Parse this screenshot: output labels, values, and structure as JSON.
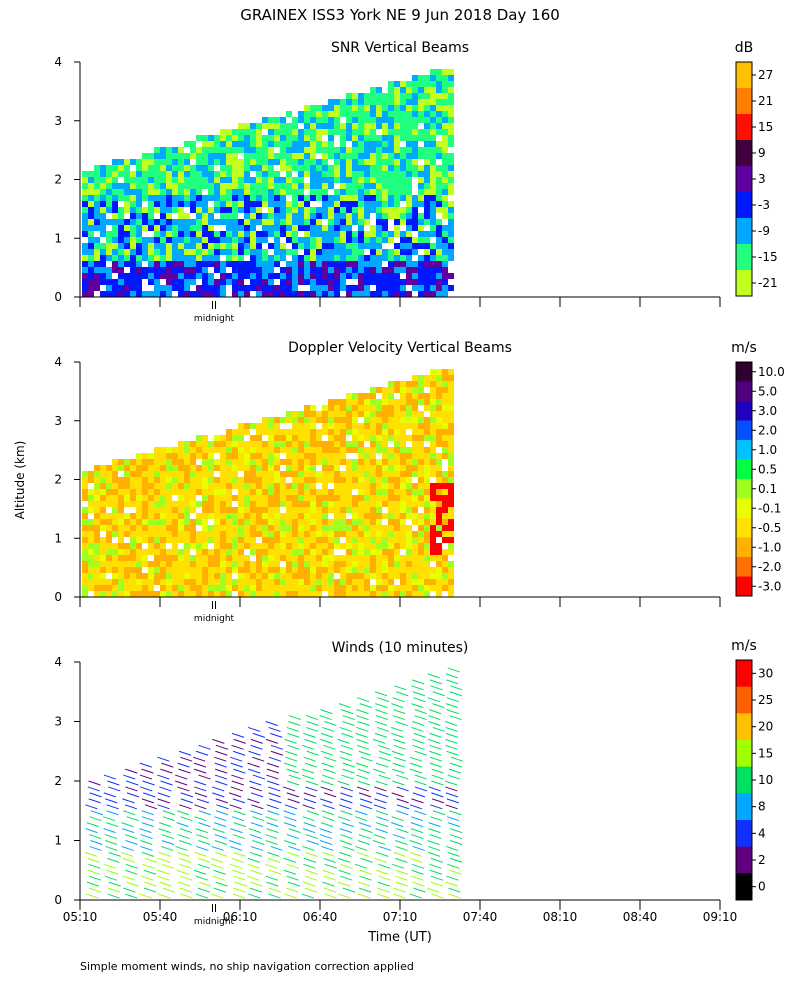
{
  "title": "GRAINEX ISS3 York NE   9 Jun 2018 Day 160",
  "ylabel": "Altitude (km)",
  "xlabel": "Time (UT)",
  "footnote": "Simple moment winds, no ship navigation correction applied",
  "midnight_label": "midnight",
  "x_ticks": [
    "05:10",
    "05:40",
    "06:10",
    "06:40",
    "07:10",
    "07:40",
    "08:10",
    "08:40",
    "09:10"
  ],
  "y_ticks": [
    "0",
    "1",
    "2",
    "3",
    "4"
  ],
  "chart_data": [
    {
      "type": "heatmap",
      "title": "SNR Vertical Beams",
      "unit": "dB",
      "x_range": [
        "05:10",
        "09:10"
      ],
      "data_end_time": "07:30",
      "ylim": [
        0,
        4
      ],
      "colorbar": {
        "labels": [
          "27",
          "21",
          "15",
          "9",
          "3",
          "-3",
          "-9",
          "-15",
          "-21"
        ],
        "colors": [
          "#ffc000",
          "#ff8000",
          "#ff1000",
          "#400040",
          "#6000a0",
          "#0018ff",
          "#00a8ff",
          "#20ff80",
          "#c0ff20"
        ]
      }
    },
    {
      "type": "heatmap",
      "title": "Doppler Velocity Vertical Beams",
      "unit": "m/s",
      "x_range": [
        "05:10",
        "09:10"
      ],
      "data_end_time": "07:30",
      "ylim": [
        0,
        4
      ],
      "colorbar": {
        "labels": [
          "10.0",
          "5.0",
          "3.0",
          "2.0",
          "1.0",
          "0.5",
          "0.1",
          "-0.1",
          "-0.5",
          "-1.0",
          "-2.0",
          "-3.0"
        ],
        "colors": [
          "#300030",
          "#500080",
          "#2000c0",
          "#0050ff",
          "#00c0ff",
          "#00ff40",
          "#a0ff20",
          "#e8ff00",
          "#ffe000",
          "#ffb000",
          "#ff7000",
          "#ff0000"
        ]
      }
    },
    {
      "type": "scatter",
      "title": "Winds (10 minutes)",
      "unit": "m/s",
      "x_range": [
        "05:10",
        "09:10"
      ],
      "ylim": [
        0,
        4
      ],
      "colorbar": {
        "labels": [
          "30",
          "25",
          "20",
          "15",
          "10",
          "8",
          "4",
          "2",
          "0"
        ],
        "colors": [
          "#ff0000",
          "#ff6000",
          "#ffc000",
          "#a0ff00",
          "#00e060",
          "#00a8ff",
          "#1030ff",
          "#600080",
          "#000000"
        ]
      }
    }
  ],
  "colors": {
    "background": "#ffffff",
    "axis": "#000000"
  }
}
